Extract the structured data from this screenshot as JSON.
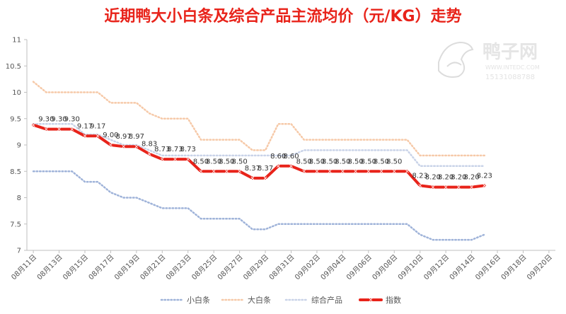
{
  "colors": {
    "title": "#e8231a",
    "axis": "#bfbfbf",
    "grid": "#e6e6e6",
    "series": [
      "#9fb3d9",
      "#f6c9a8",
      "#c9d3e8",
      "#e8231a"
    ],
    "watermark": "#d9d9d9"
  },
  "watermark": {
    "brand": "鸭子网",
    "site": "WWW.INTEDC.COM",
    "phone": "15131088788"
  },
  "chart_data": {
    "type": "line",
    "title": "近期鸭大小白条及综合产品主流均价（元/KG）走势",
    "xlabel": "",
    "ylabel": "",
    "ylim": [
      7,
      11
    ],
    "yticks": [
      "7",
      "7.5",
      "8",
      "8.5",
      "9",
      "9.5",
      "10",
      "10.5",
      "11"
    ],
    "xtick_labels": [
      "08月11日",
      "08月13日",
      "08月15日",
      "08月17日",
      "08月19日",
      "08月21日",
      "08月23日",
      "08月25日",
      "08月27日",
      "08月29日",
      "08月31日",
      "09月02日",
      "09月04日",
      "09月06日",
      "09月08日",
      "09月10日",
      "09月12日",
      "09月14日",
      "09月16日",
      "09月18日",
      "09月20日"
    ],
    "n_slots": 41,
    "legend_position": "bottom",
    "series": [
      {
        "name": "小白条",
        "style": "dotted",
        "values": [
          8.5,
          8.5,
          8.5,
          8.5,
          8.3,
          8.3,
          8.1,
          8.0,
          8.0,
          7.9,
          7.8,
          7.8,
          7.8,
          7.6,
          7.6,
          7.6,
          7.6,
          7.4,
          7.4,
          7.5,
          7.5,
          7.5,
          7.5,
          7.5,
          7.5,
          7.5,
          7.5,
          7.5,
          7.5,
          7.5,
          7.3,
          7.2,
          7.2,
          7.2,
          7.2,
          7.3
        ]
      },
      {
        "name": "大白条",
        "style": "dotted",
        "values": [
          10.2,
          10.0,
          10.0,
          10.0,
          10.0,
          10.0,
          9.8,
          9.8,
          9.8,
          9.6,
          9.5,
          9.5,
          9.5,
          9.1,
          9.1,
          9.1,
          9.1,
          8.9,
          8.9,
          9.4,
          9.4,
          9.1,
          9.1,
          9.1,
          9.1,
          9.1,
          9.1,
          9.1,
          9.1,
          9.1,
          8.8,
          8.8,
          8.8,
          8.8,
          8.8,
          8.8
        ]
      },
      {
        "name": "综合产品",
        "style": "dotted",
        "values": [
          9.4,
          9.4,
          9.4,
          9.4,
          9.2,
          9.2,
          9.1,
          9.0,
          9.0,
          8.9,
          8.8,
          8.8,
          8.8,
          8.8,
          8.8,
          8.8,
          8.8,
          8.8,
          8.8,
          8.8,
          8.8,
          8.9,
          8.9,
          8.9,
          8.9,
          8.9,
          8.9,
          8.9,
          8.9,
          8.9,
          8.6,
          8.6,
          8.6,
          8.6,
          8.6,
          8.6
        ]
      },
      {
        "name": "指数",
        "style": "solid",
        "values": [
          9.38,
          9.3,
          9.3,
          9.3,
          9.17,
          9.17,
          9.0,
          8.97,
          8.97,
          8.83,
          8.73,
          8.73,
          8.73,
          8.5,
          8.5,
          8.5,
          8.5,
          8.37,
          8.37,
          8.6,
          8.6,
          8.5,
          8.5,
          8.5,
          8.5,
          8.5,
          8.5,
          8.5,
          8.5,
          8.5,
          8.23,
          8.2,
          8.2,
          8.2,
          8.2,
          8.23
        ],
        "labels": [
          "",
          "9.30",
          "9.30",
          "9.30",
          "9.17",
          "9.17",
          "9.00",
          "8.97",
          "8.97",
          "8.83",
          "8.73",
          "8.73",
          "8.73",
          "8.50",
          "8.50",
          "8.50",
          "8.50",
          "8.37",
          "8.37",
          "8.60",
          "8.60",
          "8.50",
          "8.50",
          "8.50",
          "8.50",
          "8.50",
          "8.50",
          "8.50",
          "8.50",
          "",
          "8.23",
          "8.20",
          "8.20",
          "8.20",
          "8.20",
          "8.23"
        ]
      }
    ]
  }
}
